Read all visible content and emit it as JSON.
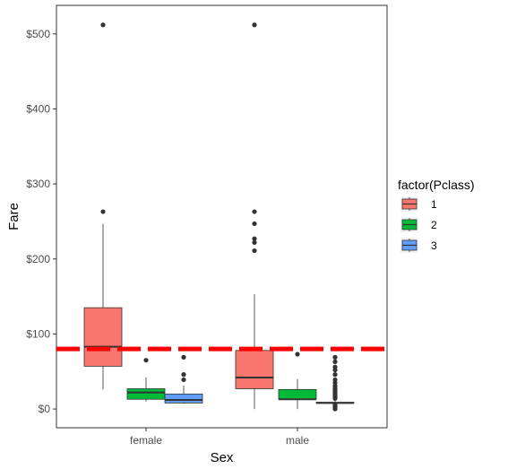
{
  "chart_data": {
    "type": "boxplot",
    "xlabel": "Sex",
    "ylabel": "Fare",
    "categories": [
      "female",
      "male"
    ],
    "ylim": [
      -25,
      538
    ],
    "yticks": [
      0,
      100,
      200,
      300,
      400,
      500
    ],
    "ytick_labels": [
      "$0",
      "$100",
      "$200",
      "$300",
      "$400",
      "$500"
    ],
    "legend": {
      "title": "factor(Pclass)",
      "position": "right",
      "entries": [
        "1",
        "2",
        "3"
      ]
    },
    "series": [
      {
        "name": "1",
        "color": "#f8766d",
        "boxes": [
          {
            "category": "female",
            "whisker_low": 26,
            "q1": 57,
            "median": 83,
            "q3": 135,
            "whisker_high": 247,
            "outliers": [
              263,
              512
            ]
          },
          {
            "category": "male",
            "whisker_low": 0,
            "q1": 27,
            "median": 42,
            "q3": 78,
            "whisker_high": 153,
            "outliers": [
              211,
              222,
              227,
              247,
              263,
              512
            ]
          }
        ]
      },
      {
        "name": "2",
        "color": "#00ba38",
        "boxes": [
          {
            "category": "female",
            "whisker_low": 10,
            "q1": 13,
            "median": 22,
            "q3": 27,
            "whisker_high": 42,
            "outliers": [
              65
            ]
          },
          {
            "category": "male",
            "whisker_low": 0,
            "q1": 13,
            "median": 13,
            "q3": 26,
            "whisker_high": 40,
            "outliers": [
              73
            ]
          }
        ]
      },
      {
        "name": "3",
        "color": "#619cff",
        "boxes": [
          {
            "category": "female",
            "whisker_low": 7,
            "q1": 8,
            "median": 12,
            "q3": 20,
            "whisker_high": 31,
            "outliers": [
              39,
              46,
              69
            ]
          },
          {
            "category": "male",
            "whisker_low": 0,
            "q1": 7.8,
            "median": 8,
            "q3": 9,
            "whisker_high": 11,
            "outliers": [
              0,
              2,
              4,
              6,
              14,
              16,
              18,
              20,
              22,
              24,
              26,
              28,
              31,
              35,
              39,
              46,
              52,
              56,
              63,
              69
            ]
          }
        ]
      }
    ],
    "reference_line": {
      "y": 80,
      "color": "#ff0000",
      "style": "dashed"
    },
    "grid": false,
    "panel_border": true
  }
}
